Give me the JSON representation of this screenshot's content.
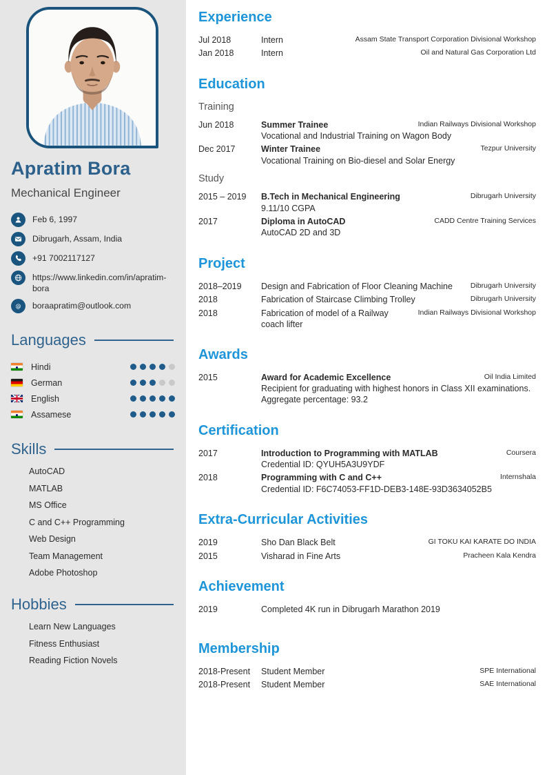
{
  "colors": {
    "sidebar_background": "#e6e6e6",
    "accent_dark_blue": "#2d618c",
    "icon_circle_blue": "#19557f",
    "photo_border_blue": "#1a537c",
    "section_heading_blue": "#1e95d8",
    "body_text": "#2b2b2b",
    "dot_filled": "#1f5c8b",
    "dot_empty": "#c9c9c9"
  },
  "sidebar": {
    "photo": {
      "description": "Head-and-shoulders portrait of a young man with dark hair and a light blue striped shirt, white background, rounded blue frame"
    },
    "name": "Apratim Bora",
    "title": "Mechanical Engineer",
    "contacts": [
      {
        "icon": "person-icon",
        "text": "Feb 6, 1997",
        "link": false
      },
      {
        "icon": "envelope-icon",
        "text": "Dibrugarh, Assam, India",
        "link": false
      },
      {
        "icon": "phone-icon",
        "text": "+91 7002117127",
        "link": false
      },
      {
        "icon": "website-icon",
        "text": "https://www.linkedin.com/in/apratim-bora",
        "link": true
      },
      {
        "icon": "at-icon",
        "text": "boraapratim@outlook.com",
        "link": true
      }
    ],
    "languages": {
      "heading": "Languages",
      "max_level": 5,
      "items": [
        {
          "label": "Hindi",
          "flag": "india",
          "level": 4
        },
        {
          "label": "German",
          "flag": "germany",
          "level": 3
        },
        {
          "label": "English",
          "flag": "uk",
          "level": 5
        },
        {
          "label": "Assamese",
          "flag": "india",
          "level": 5
        }
      ]
    },
    "skills": {
      "heading": "Skills",
      "items": [
        "AutoCAD",
        "MATLAB",
        "MS Office",
        "C and C++ Programming",
        "Web Design",
        "Team Management",
        "Adobe Photoshop"
      ]
    },
    "hobbies": {
      "heading": "Hobbies",
      "items": [
        "Learn New Languages",
        "Fitness Enthusiast",
        "Reading Fiction Novels"
      ]
    }
  },
  "main": {
    "sections": [
      {
        "heading": "Experience",
        "rows": [
          {
            "date": "Jul 2018",
            "title": "Intern",
            "org": "Assam State Transport Corporation Divisional Workshop"
          },
          {
            "date": "Jan 2018",
            "title": "Intern",
            "org": "Oil and Natural Gas Corporation Ltd"
          }
        ]
      },
      {
        "heading": "Education",
        "subsections": [
          {
            "subheading": "Training",
            "rows": [
              {
                "date": "Jun 2018",
                "title": "Summer Trainee",
                "bold": true,
                "org": "Indian Railways Divisional Workshop",
                "desc": "Vocational and Industrial Training on Wagon Body"
              },
              {
                "date": "Dec 2017",
                "title": "Winter Trainee",
                "bold": true,
                "org": "Tezpur University",
                "desc": "Vocational Training on Bio-diesel and Solar Energy"
              }
            ]
          },
          {
            "subheading": "Study",
            "rows": [
              {
                "date": "2015 – 2019",
                "title": "B.Tech in Mechanical Engineering",
                "bold": true,
                "org": "Dibrugarh University",
                "desc": "9.11/10 CGPA"
              },
              {
                "date": "2017",
                "title": "Diploma in AutoCAD",
                "bold": true,
                "org": "CADD Centre Training Services",
                "desc": "AutoCAD 2D and 3D"
              }
            ]
          }
        ]
      },
      {
        "heading": "Project",
        "rows": [
          {
            "date": "2018–2019",
            "title": "Design and Fabrication of Floor Cleaning Machine",
            "org": "Dibrugarh University"
          },
          {
            "date": "2018",
            "title": "Fabrication of Staircase Climbing Trolley",
            "org": "Dibrugarh University"
          },
          {
            "date": "2018",
            "title": "Fabrication of model of a Railway coach lifter",
            "org": "Indian Railways Divisional Workshop"
          }
        ]
      },
      {
        "heading": "Awards",
        "rows": [
          {
            "date": "2015",
            "title": "Award for Academic Excellence",
            "bold": true,
            "org": "Oil India Limited",
            "desc": "Recipient for graduating with highest honors in Class XII examinations. Aggregate percentage: 93.2"
          }
        ]
      },
      {
        "heading": "Certification",
        "rows": [
          {
            "date": "2017",
            "title": "Introduction to Programming with MATLAB",
            "bold": true,
            "org": "Coursera",
            "desc": "Credential ID: QYUH5A3U9YDF"
          },
          {
            "date": "2018",
            "title": "Programming with C and C++",
            "bold": true,
            "org": "Internshala",
            "desc": "Credential ID: F6C74053-FF1D-DEB3-148E-93D3634052B5"
          }
        ]
      },
      {
        "heading": "Extra-Curricular Activities",
        "rows": [
          {
            "date": "2019",
            "title": "Sho Dan Black Belt",
            "org": "GI TOKU KAI KARATE DO INDIA"
          },
          {
            "date": "2015",
            "title": "Visharad in Fine Arts",
            "org": "Pracheen Kala Kendra"
          }
        ]
      },
      {
        "heading": "Achievement",
        "rows": [
          {
            "date": "2019",
            "title": "Completed 4K run in Dibrugarh Marathon 2019",
            "org": ""
          }
        ]
      },
      {
        "heading": "Membership",
        "rows": [
          {
            "date": "2018-Present",
            "title": "Student Member",
            "org": "SPE International"
          },
          {
            "date": "2018-Present",
            "title": "Student Member",
            "org": "SAE International"
          }
        ]
      }
    ]
  }
}
